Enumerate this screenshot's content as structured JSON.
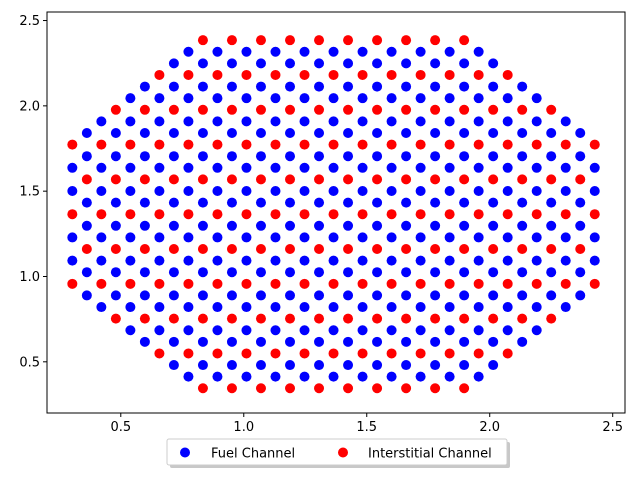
{
  "chart_data": {
    "type": "scatter",
    "title": "",
    "xlabel": "",
    "ylabel": "",
    "xlim": [
      0.2,
      2.55
    ],
    "ylim": [
      0.2,
      2.55
    ],
    "x_ticks": [
      0.5,
      1.0,
      1.5,
      2.0,
      2.5
    ],
    "y_ticks": [
      0.5,
      1.0,
      1.5,
      2.0,
      2.5
    ],
    "x_tick_labels": [
      "0.5",
      "1.0",
      "1.5",
      "2.0",
      "2.5"
    ],
    "y_tick_labels": [
      "0.5",
      "1.0",
      "1.5",
      "2.0",
      "2.5"
    ],
    "grid": false,
    "legend_position": "bottom-center, below axes, 2 columns",
    "lattice": {
      "center": [
        1.365,
        1.365
      ],
      "column_spacing": 0.059,
      "row_spacing": 0.068,
      "half_width": 1.08,
      "half_height": 1.07,
      "corner_chamfer": 0.55
    },
    "series": [
      {
        "name": "Fuel Channel",
        "color": "#0000ff",
        "role": "fuel",
        "marker": "circle"
      },
      {
        "name": "Interstitial Channel",
        "color": "#ff0000",
        "role": "interstitial",
        "marker": "circle"
      }
    ]
  }
}
